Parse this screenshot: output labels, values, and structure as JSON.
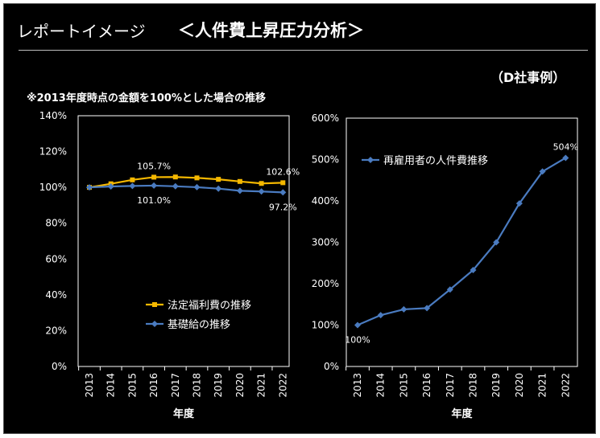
{
  "header": {
    "title_prefix": "レポートイメージ",
    "title_main": "＜人件費上昇圧力分析＞",
    "case_label": "（D社事例）",
    "subtitle": "※2013年度時点の金額を100%とした場合の推移"
  },
  "colors": {
    "orange": "#f5b800",
    "blue": "#4a7bc0",
    "grid": "#808080",
    "axis_text": "#ffffff"
  },
  "chart_data": [
    {
      "type": "line",
      "x": [
        "2013",
        "2014",
        "2015",
        "2016",
        "2017",
        "2018",
        "2019",
        "2020",
        "2021",
        "2022"
      ],
      "series": [
        {
          "name": "法定福利費の推移",
          "color": "#f5b800",
          "marker": "square",
          "values": [
            100,
            102.0,
            104.2,
            105.7,
            105.8,
            105.3,
            104.5,
            103.3,
            102.2,
            102.6
          ]
        },
        {
          "name": "基礎給の推移",
          "color": "#4a7bc0",
          "marker": "diamond",
          "values": [
            100,
            100.5,
            100.8,
            101.0,
            100.6,
            100.1,
            99.3,
            98.1,
            97.7,
            97.2
          ]
        }
      ],
      "y_ticks": [
        "0%",
        "20%",
        "40%",
        "60%",
        "80%",
        "100%",
        "120%",
        "140%"
      ],
      "ylim": [
        0,
        140
      ],
      "xlabel": "年度",
      "annotations": [
        {
          "series": 0,
          "index": 3,
          "text": "105.7%",
          "pos": "above"
        },
        {
          "series": 1,
          "index": 3,
          "text": "101.0%",
          "pos": "below"
        },
        {
          "series": 0,
          "index": 9,
          "text": "102.6%",
          "pos": "above"
        },
        {
          "series": 1,
          "index": 9,
          "text": "97.2%",
          "pos": "below"
        }
      ],
      "legend_position": "bottom-right",
      "grid": false
    },
    {
      "type": "line",
      "x": [
        "2013",
        "2014",
        "2015",
        "2016",
        "2017",
        "2018",
        "2019",
        "2020",
        "2021",
        "2022"
      ],
      "series": [
        {
          "name": "再雇用者の人件費推移",
          "color": "#4a7bc0",
          "marker": "diamond",
          "values": [
            100,
            124,
            138,
            141,
            186,
            233,
            300,
            394,
            471,
            504
          ]
        }
      ],
      "y_ticks": [
        "0%",
        "100%",
        "200%",
        "300%",
        "400%",
        "500%",
        "600%"
      ],
      "ylim": [
        0,
        600
      ],
      "xlabel": "年度",
      "annotations": [
        {
          "series": 0,
          "index": 0,
          "text": "100%",
          "pos": "below"
        },
        {
          "series": 0,
          "index": 9,
          "text": "504%",
          "pos": "above"
        }
      ],
      "legend_position": "top-left",
      "grid": false
    }
  ]
}
